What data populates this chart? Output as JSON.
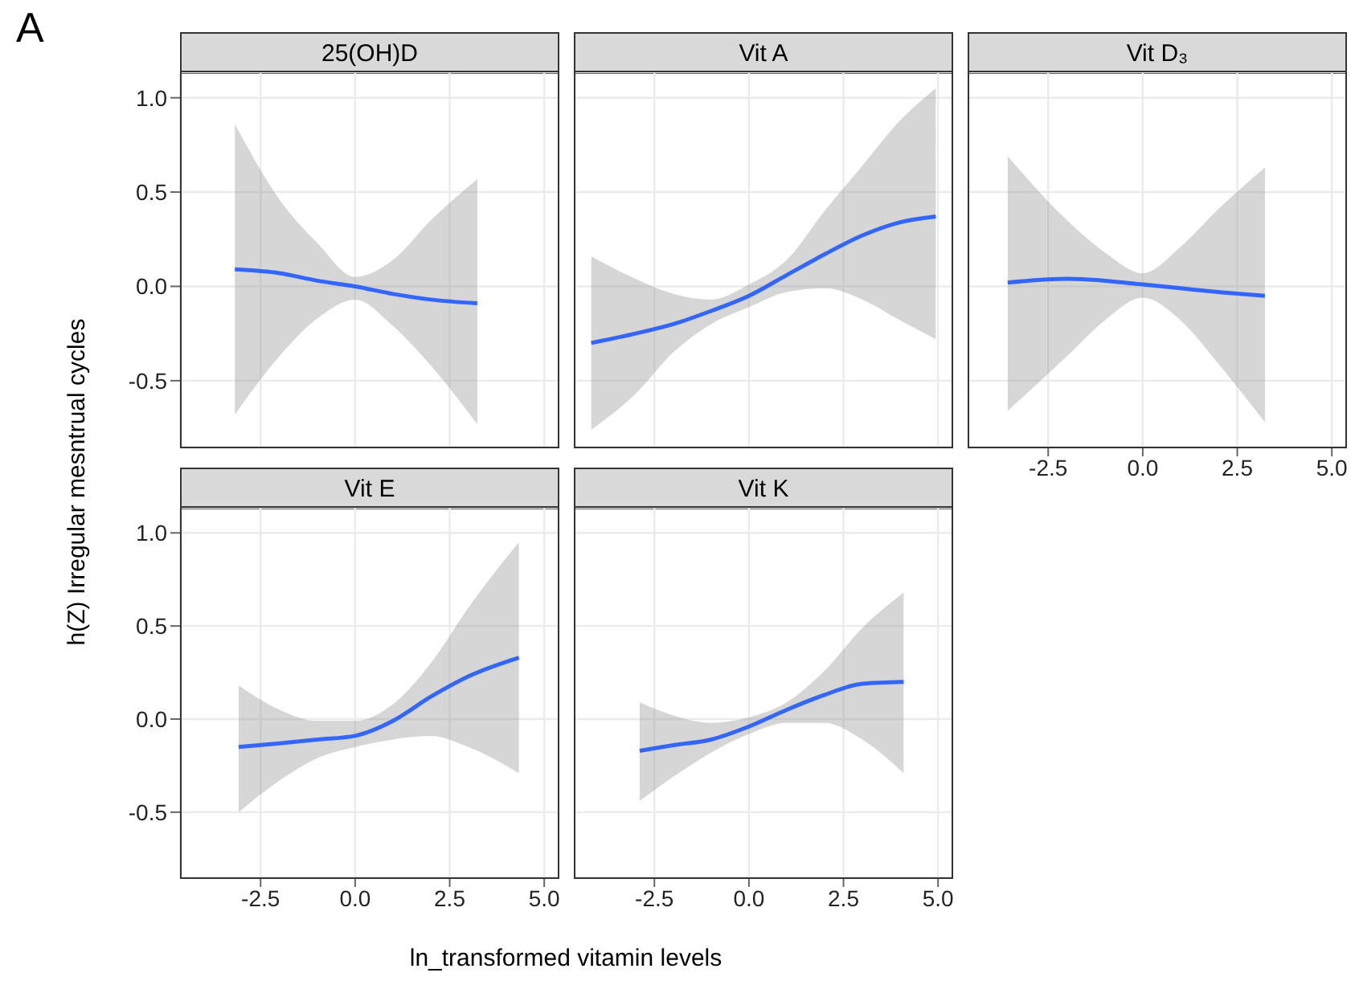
{
  "chart_data": [
    {
      "type": "line",
      "title": "25(OH)D",
      "ylabel": "h(Z) Irregular mesntrual cycles",
      "annotations": [
        "A"
      ],
      "grid": true,
      "tick_labels": "y",
      "xlim": [
        -4.63,
        5.4
      ],
      "ylim": [
        -0.85,
        1.135
      ],
      "xticks": [
        -2.5,
        0,
        2.5,
        5
      ],
      "yticks": [
        {
          "value": -0.5,
          "label": "-0.5"
        },
        {
          "value": 0,
          "label": "0.0"
        },
        {
          "value": 0.5,
          "label": "0.5"
        },
        {
          "value": 1,
          "label": "1.0"
        }
      ],
      "series": [
        {
          "color": "#3366ff",
          "x": [
            -3.18,
            -2,
            -1,
            0,
            1,
            2,
            3.23
          ],
          "values": [
            0.09,
            0.07,
            0.03,
            0,
            -0.04,
            -0.07,
            -0.09
          ],
          "lower": [
            -0.68,
            -0.37,
            -0.17,
            -0.07,
            -0.21,
            -0.42,
            -0.73
          ],
          "upper": [
            0.86,
            0.46,
            0.23,
            0.05,
            0.14,
            0.35,
            0.57
          ]
        }
      ]
    },
    {
      "type": "line",
      "title": "Vit A",
      "grid": true,
      "tick_labels": false,
      "xlim": [
        -4.63,
        5.4
      ],
      "ylim": [
        -0.85,
        1.135
      ],
      "xticks": [
        -2.5,
        0,
        2.5,
        5
      ],
      "yticks": [
        -0.5,
        0,
        0.5,
        1
      ],
      "series": [
        {
          "color": "#3366ff",
          "x": [
            -4.17,
            -3,
            -2,
            -1,
            0,
            1,
            2,
            3,
            4,
            4.94
          ],
          "values": [
            -0.3,
            -0.25,
            -0.2,
            -0.13,
            -0.05,
            0.06,
            0.17,
            0.27,
            0.34,
            0.37
          ],
          "lower": [
            -0.76,
            -0.57,
            -0.35,
            -0.2,
            -0.11,
            -0.03,
            -0.01,
            -0.07,
            -0.18,
            -0.28
          ],
          "upper": [
            0.16,
            0.04,
            -0.04,
            -0.07,
            0.01,
            0.14,
            0.4,
            0.64,
            0.88,
            1.05
          ]
        }
      ]
    },
    {
      "type": "line",
      "title": "Vit D₃",
      "grid": true,
      "tick_labels": "x",
      "xlim": [
        -4.63,
        5.4
      ],
      "ylim": [
        -0.85,
        1.135
      ],
      "xticks": [
        {
          "value": -2.5,
          "label": "-2.5"
        },
        {
          "value": 0,
          "label": "0.0"
        },
        {
          "value": 2.5,
          "label": "2.5"
        },
        {
          "value": 5,
          "label": "5.0"
        }
      ],
      "yticks": [
        -0.5,
        0,
        0.5,
        1
      ],
      "series": [
        {
          "color": "#3366ff",
          "x": [
            -3.57,
            -2,
            -1,
            0,
            1,
            2,
            3.23
          ],
          "values": [
            0.02,
            0.04,
            0.03,
            0.01,
            -0.01,
            -0.03,
            -0.05
          ],
          "lower": [
            -0.66,
            -0.37,
            -0.18,
            -0.06,
            -0.18,
            -0.41,
            -0.72
          ],
          "upper": [
            0.69,
            0.35,
            0.18,
            0.07,
            0.21,
            0.41,
            0.63
          ]
        }
      ]
    },
    {
      "type": "line",
      "title": "Vit E",
      "grid": true,
      "xlim": [
        -4.63,
        5.4
      ],
      "ylim": [
        -0.85,
        1.135
      ],
      "xticks": [
        {
          "value": -2.5,
          "label": "-2.5"
        },
        {
          "value": 0,
          "label": "0.0"
        },
        {
          "value": 2.5,
          "label": "2.5"
        },
        {
          "value": 5,
          "label": "5.0"
        }
      ],
      "yticks": [
        {
          "value": -0.5,
          "label": "-0.5"
        },
        {
          "value": 0,
          "label": "0.0"
        },
        {
          "value": 0.5,
          "label": "0.5"
        },
        {
          "value": 1,
          "label": "1.0"
        }
      ],
      "series": [
        {
          "color": "#3366ff",
          "x": [
            -3.08,
            -2,
            -1,
            0,
            1,
            2,
            3,
            4.33
          ],
          "values": [
            -0.15,
            -0.13,
            -0.11,
            -0.09,
            -0.01,
            0.12,
            0.23,
            0.33
          ],
          "lower": [
            -0.5,
            -0.33,
            -0.21,
            -0.15,
            -0.11,
            -0.09,
            -0.15,
            -0.29
          ],
          "upper": [
            0.18,
            0.05,
            -0.01,
            -0.01,
            0.08,
            0.3,
            0.6,
            0.95
          ]
        }
      ]
    },
    {
      "type": "line",
      "title": "Vit K",
      "xlabel": "ln_transformed vitamin levels",
      "grid": true,
      "tick_labels": "x",
      "xlim": [
        -4.63,
        5.4
      ],
      "ylim": [
        -0.85,
        1.135
      ],
      "xticks": [
        {
          "value": -2.5,
          "label": "-2.5"
        },
        {
          "value": 0,
          "label": "0.0"
        },
        {
          "value": 2.5,
          "label": "2.5"
        },
        {
          "value": 5,
          "label": "5.0"
        }
      ],
      "yticks": [
        -0.5,
        0,
        0.5,
        1
      ],
      "series": [
        {
          "color": "#3366ff",
          "x": [
            -2.89,
            -2,
            -1,
            0,
            1,
            2,
            3,
            4.09
          ],
          "values": [
            -0.17,
            -0.14,
            -0.11,
            -0.04,
            0.05,
            0.13,
            0.19,
            0.2
          ],
          "lower": [
            -0.44,
            -0.31,
            -0.18,
            -0.08,
            -0.02,
            -0.02,
            -0.11,
            -0.29
          ],
          "upper": [
            0.09,
            0.02,
            -0.02,
            0.01,
            0.09,
            0.26,
            0.49,
            0.68
          ]
        }
      ]
    }
  ]
}
